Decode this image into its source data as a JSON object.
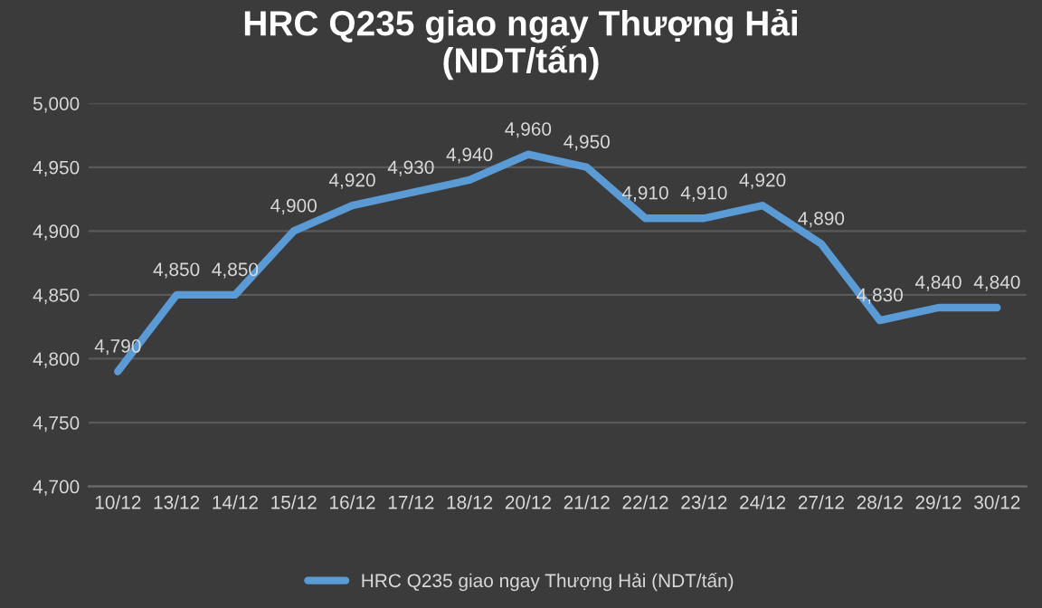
{
  "chart_data": {
    "type": "line",
    "title": "HRC Q235 giao ngay Thượng Hải\n(NDT/tấn)",
    "categories": [
      "10/12",
      "13/12",
      "14/12",
      "15/12",
      "16/12",
      "17/12",
      "18/12",
      "20/12",
      "21/12",
      "22/12",
      "23/12",
      "24/12",
      "27/12",
      "28/12",
      "29/12",
      "30/12"
    ],
    "series": [
      {
        "name": "HRC Q235 giao ngay Thượng Hải (NDT/tấn)",
        "color": "#5b9bd5",
        "values": [
          4790,
          4850,
          4850,
          4900,
          4920,
          4930,
          4940,
          4960,
          4950,
          4910,
          4910,
          4920,
          4890,
          4830,
          4840,
          4840
        ],
        "value_labels": [
          "4,790",
          "4,850",
          "4,850",
          "4,900",
          "4,920",
          "4,930",
          "4,940",
          "4,960",
          "4,950",
          "4,910",
          "4,910",
          "4,920",
          "4,890",
          "4,830",
          "4,840",
          "4,840"
        ]
      }
    ],
    "ylim": [
      4700,
      5000
    ],
    "yticks": [
      {
        "value": 4700,
        "label": "4,700"
      },
      {
        "value": 4750,
        "label": "4,750"
      },
      {
        "value": 4800,
        "label": "4,800"
      },
      {
        "value": 4850,
        "label": "4,850"
      },
      {
        "value": 4900,
        "label": "4,900"
      },
      {
        "value": 4950,
        "label": "4,950"
      },
      {
        "value": 5000,
        "label": "5,000"
      }
    ],
    "grid": "y",
    "legend": "bottom",
    "marker": "none",
    "line_style": "solid"
  }
}
